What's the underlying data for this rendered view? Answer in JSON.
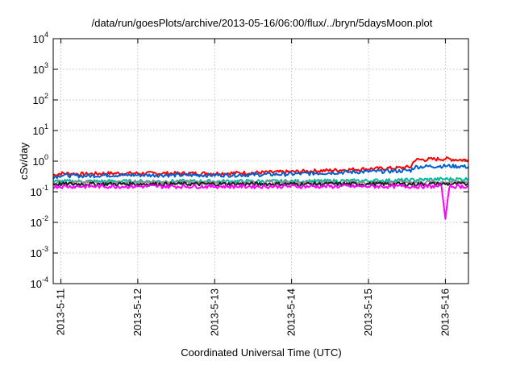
{
  "chart_data": {
    "type": "line",
    "title": "/data/run/goesPlots/archive/2013-05-16/06:00/flux/../bryn/5daysMoon.plot",
    "xlabel": "Coordinated Universal Time (UTC)",
    "ylabel": "cSv/day",
    "x_tick_labels": [
      "2013-5-11",
      "2013-5-12",
      "2013-5-13",
      "2013-5-14",
      "2013-5-15",
      "2013-5-16"
    ],
    "x_tick_days": [
      0,
      1,
      2,
      3,
      4,
      5
    ],
    "xlim_days": [
      -0.1,
      5.3
    ],
    "y_scale": "log",
    "ylim": [
      0.0001,
      10000
    ],
    "y_ticks": [
      {
        "base": "10",
        "exp": "-4",
        "value": 0.0001
      },
      {
        "base": "10",
        "exp": "-3",
        "value": 0.001
      },
      {
        "base": "10",
        "exp": "-2",
        "value": 0.01
      },
      {
        "base": "10",
        "exp": "-1",
        "value": 0.1
      },
      {
        "base": "10",
        "exp": "0",
        "value": 1
      },
      {
        "base": "10",
        "exp": "1",
        "value": 10
      },
      {
        "base": "10",
        "exp": "2",
        "value": 100
      },
      {
        "base": "10",
        "exp": "3",
        "value": 1000
      },
      {
        "base": "10",
        "exp": "4",
        "value": 10000
      }
    ],
    "grid": true,
    "series": [
      {
        "color": "#ff0000",
        "x": [
          -0.1,
          0.0,
          0.3,
          0.6,
          1.0,
          1.5,
          2.0,
          2.5,
          3.0,
          3.5,
          3.9,
          4.2,
          4.4,
          4.55,
          4.6,
          4.8,
          5.0,
          5.2,
          5.3
        ],
        "y": [
          0.35,
          0.4,
          0.38,
          0.4,
          0.4,
          0.4,
          0.4,
          0.42,
          0.45,
          0.5,
          0.55,
          0.58,
          0.6,
          0.65,
          1.1,
          1.15,
          1.2,
          1.1,
          1.1
        ]
      },
      {
        "color": "#0060d0",
        "x": [
          -0.1,
          0.0,
          0.3,
          0.6,
          1.0,
          1.5,
          2.0,
          2.5,
          3.0,
          3.5,
          3.9,
          4.2,
          4.4,
          4.55,
          4.6,
          4.8,
          5.0,
          5.2,
          5.3
        ],
        "y": [
          0.3,
          0.35,
          0.33,
          0.35,
          0.35,
          0.35,
          0.35,
          0.36,
          0.38,
          0.42,
          0.45,
          0.47,
          0.48,
          0.5,
          0.65,
          0.68,
          0.7,
          0.68,
          0.65
        ]
      },
      {
        "color": "#00bba0",
        "x": [
          -0.1,
          0.5,
          1.0,
          2.0,
          3.0,
          4.0,
          4.5,
          5.0,
          5.3
        ],
        "y": [
          0.22,
          0.22,
          0.22,
          0.22,
          0.22,
          0.23,
          0.24,
          0.26,
          0.26
        ]
      },
      {
        "color": "#909090",
        "x": [
          -0.1,
          0.5,
          1.0,
          2.0,
          3.0,
          4.0,
          5.0,
          5.3
        ],
        "y": [
          0.2,
          0.2,
          0.2,
          0.2,
          0.2,
          0.2,
          0.21,
          0.21
        ]
      },
      {
        "color": "#202020",
        "x": [
          -0.1,
          0.5,
          1.0,
          2.0,
          3.0,
          4.0,
          5.0,
          5.3
        ],
        "y": [
          0.18,
          0.18,
          0.18,
          0.18,
          0.18,
          0.18,
          0.18,
          0.18
        ]
      },
      {
        "color": "#ff00ff",
        "x": [
          -0.1,
          0.5,
          1.0,
          2.0,
          3.0,
          4.0,
          4.95,
          5.0,
          5.05,
          5.3
        ],
        "y": [
          0.15,
          0.15,
          0.15,
          0.15,
          0.15,
          0.15,
          0.15,
          0.013,
          0.15,
          0.15
        ]
      }
    ]
  }
}
